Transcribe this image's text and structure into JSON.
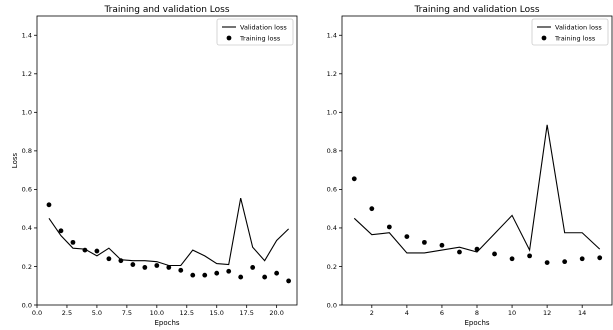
{
  "chart_data": [
    {
      "type": "line",
      "title": "Training and validation Loss",
      "xlabel": "Epochs",
      "ylabel": "Loss",
      "xlim": [
        0,
        21.7
      ],
      "ylim": [
        0,
        1.5
      ],
      "xticks": [
        0.0,
        2.5,
        5.0,
        7.5,
        10.0,
        12.5,
        15.0,
        17.5,
        20.0
      ],
      "xtick_labels": [
        "0.0",
        "2.5",
        "5.0",
        "7.5",
        "10.0",
        "12.5",
        "15.0",
        "17.5",
        "20.0"
      ],
      "yticks": [
        0.0,
        0.2,
        0.4,
        0.6,
        0.8,
        1.0,
        1.2,
        1.4
      ],
      "ytick_labels": [
        "0.0",
        "0.2",
        "0.4",
        "0.6",
        "0.8",
        "1.0",
        "1.2",
        "1.4"
      ],
      "legend": "top-right",
      "x": [
        1,
        2,
        3,
        4,
        5,
        6,
        7,
        8,
        9,
        10,
        11,
        12,
        13,
        14,
        15,
        16,
        17,
        18,
        19,
        20,
        21
      ],
      "series": [
        {
          "name": "Validation loss",
          "style": "line",
          "color": "#000000",
          "values": [
            0.45,
            0.36,
            0.295,
            0.29,
            0.255,
            0.295,
            0.235,
            0.23,
            0.23,
            0.225,
            0.205,
            0.205,
            0.285,
            0.255,
            0.215,
            0.21,
            0.555,
            0.3,
            0.23,
            0.335,
            0.395
          ]
        },
        {
          "name": "Training loss",
          "style": "scatter",
          "color": "#000000",
          "values": [
            0.52,
            0.385,
            0.325,
            0.285,
            0.28,
            0.24,
            0.23,
            0.21,
            0.195,
            0.205,
            0.195,
            0.18,
            0.155,
            0.155,
            0.165,
            0.175,
            0.145,
            0.195,
            0.145,
            0.165,
            0.125
          ]
        }
      ]
    },
    {
      "type": "line",
      "title": "Training and validation Loss",
      "xlabel": "Epochs",
      "ylabel": "",
      "xlim": [
        0.3,
        15.7
      ],
      "ylim": [
        0,
        1.5
      ],
      "xticks": [
        2,
        4,
        6,
        8,
        10,
        12,
        14
      ],
      "xtick_labels": [
        "2",
        "4",
        "6",
        "8",
        "10",
        "12",
        "14"
      ],
      "yticks": [
        0.0,
        0.2,
        0.4,
        0.6,
        0.8,
        1.0,
        1.2,
        1.4
      ],
      "ytick_labels": [
        "0.0",
        "0.2",
        "0.4",
        "0.6",
        "0.8",
        "1.0",
        "1.2",
        "1.4"
      ],
      "legend": "top-right",
      "x": [
        1,
        2,
        3,
        4,
        5,
        6,
        7,
        8,
        9,
        10,
        11,
        12,
        13,
        14,
        15
      ],
      "series": [
        {
          "name": "Validation loss",
          "style": "line",
          "color": "#000000",
          "values": [
            0.45,
            0.365,
            0.375,
            0.27,
            0.27,
            0.285,
            0.3,
            0.275,
            0.37,
            0.465,
            0.285,
            0.935,
            0.375,
            0.375,
            0.29
          ]
        },
        {
          "name": "Training loss",
          "style": "scatter",
          "color": "#000000",
          "values": [
            0.655,
            0.5,
            0.405,
            0.355,
            0.325,
            0.31,
            0.275,
            0.29,
            0.265,
            0.24,
            0.255,
            0.22,
            0.225,
            0.24,
            0.245
          ]
        }
      ]
    }
  ]
}
